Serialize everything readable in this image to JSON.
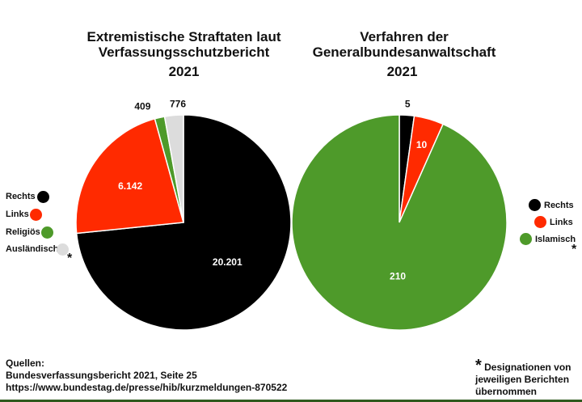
{
  "chart_data": [
    {
      "type": "pie",
      "title": "Extremistische Straftaten laut Verfassungsschutzbericht",
      "subtitle": "2021",
      "categories": [
        "Rechts",
        "Links",
        "Religiös",
        "Ausländisch"
      ],
      "values": [
        20201,
        6142,
        409,
        776
      ],
      "value_labels": [
        "20.201",
        "6.142",
        "409",
        "776"
      ],
      "colors": [
        "#000000",
        "#ff2a00",
        "#4e9a2a",
        "#dcdcdc"
      ],
      "legend_placement": "left",
      "legend_note": "*"
    },
    {
      "type": "pie",
      "title": "Verfahren der Generalbundesanwaltschaft",
      "subtitle": "2021",
      "categories": [
        "Rechts",
        "Links",
        "Islamisch"
      ],
      "values": [
        5,
        10,
        210
      ],
      "value_labels": [
        "5",
        "10",
        "210"
      ],
      "colors": [
        "#000000",
        "#ff2a00",
        "#4e9a2a"
      ],
      "legend_placement": "right",
      "legend_note": "*"
    }
  ],
  "titles": {
    "left_1": "Extremistische Straftaten laut",
    "left_2": "Verfassungsschutzbericht",
    "right_1": "Verfahren der",
    "right_2": "Generalbundesanwaltschaft",
    "year": "2021"
  },
  "footer": {
    "sources_label": "Quellen:",
    "source_1": "Bundesverfassungsbericht 2021, Seite 25",
    "source_2": "https://www.bundestag.de/presse/hib/kurzmeldungen-870522",
    "note_star": "*",
    "note_1": "Designationen von",
    "note_2": "jeweiligen Berichten",
    "note_3": "übernommen"
  }
}
